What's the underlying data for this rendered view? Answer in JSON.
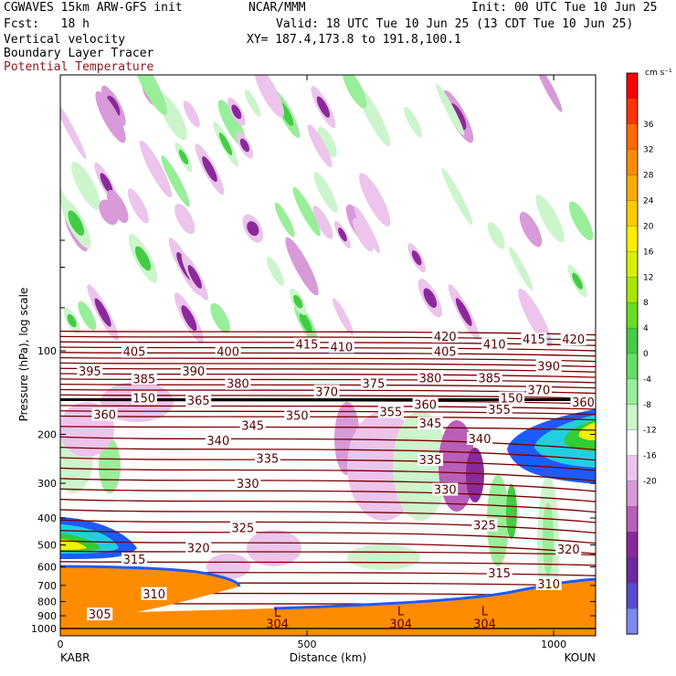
{
  "header": {
    "model": "CGWAVES 15km ARW-GFS init",
    "org": "NCAR/MMM",
    "init": "Init: 00 UTC Tue 10 Jun 25",
    "fcst": "Fcst:   18 h",
    "valid": "Valid: 18 UTC Tue 10 Jun 25 (13 CDT Tue 10 Jun 25)",
    "field1": "Vertical velocity",
    "field2": "Boundary Layer Tracer",
    "field3": "Potential Temperature",
    "xy": "XY= 187.4,173.8 to 191.8,100.1"
  },
  "colors": {
    "contour": "#7a0000",
    "terrain": "#ff8c00",
    "tracer_blue": "#1e5bff",
    "tracer_cyan": "#20d0e0",
    "tracer_green": "#33cc33",
    "tracer_yellow": "#f0f000"
  },
  "chart_data": {
    "type": "heatmap",
    "title": "Vertical velocity",
    "xlabel": "Distance (km)",
    "ylabel": "Pressure (hPa), log scale",
    "x_endpoints": [
      "KABR",
      "KOUN"
    ],
    "xlim": [
      0,
      1100
    ],
    "x_ticks": [
      0,
      500,
      1000
    ],
    "y_ticks": [
      100,
      200,
      300,
      400,
      500,
      600,
      700,
      800,
      900,
      1000
    ],
    "colorbar": {
      "units": "cm s⁻¹",
      "levels": [
        36,
        32,
        28,
        24,
        20,
        16,
        12,
        8,
        4,
        0,
        -4,
        -8,
        -12,
        -16,
        -20
      ],
      "colors": [
        "#ff0000",
        "#ff3300",
        "#ff6a00",
        "#ff8c00",
        "#ffaa00",
        "#ffcc00",
        "#ffee00",
        "#d8f000",
        "#a8e600",
        "#66dd22",
        "#44cc44",
        "#66dd66",
        "#99ee99",
        "#ccf5cc",
        "#ffffff",
        "#ecc4ec",
        "#d89ad8",
        "#b860b8",
        "#8a2a9a",
        "#6a2aa0",
        "#5a4ad0",
        "#7a88f0"
      ]
    },
    "theta_labels": [
      {
        "value": "420",
        "x": 780,
        "p": 90
      },
      {
        "value": "420",
        "x": 1040,
        "p": 92
      },
      {
        "value": "415",
        "x": 500,
        "p": 96
      },
      {
        "value": "415",
        "x": 960,
        "p": 92
      },
      {
        "value": "410",
        "x": 570,
        "p": 98
      },
      {
        "value": "410",
        "x": 880,
        "p": 96
      },
      {
        "value": "405",
        "x": 150,
        "p": 102
      },
      {
        "value": "405",
        "x": 780,
        "p": 102
      },
      {
        "value": "400",
        "x": 340,
        "p": 102
      },
      {
        "value": "395",
        "x": 60,
        "p": 120
      },
      {
        "value": "390",
        "x": 270,
        "p": 120
      },
      {
        "value": "390",
        "x": 990,
        "p": 115
      },
      {
        "value": "385",
        "x": 170,
        "p": 128
      },
      {
        "value": "385",
        "x": 870,
        "p": 127
      },
      {
        "value": "380",
        "x": 360,
        "p": 133
      },
      {
        "value": "380",
        "x": 750,
        "p": 127
      },
      {
        "value": "375",
        "x": 635,
        "p": 133
      },
      {
        "value": "370",
        "x": 540,
        "p": 142
      },
      {
        "value": "370",
        "x": 970,
        "p": 140
      },
      {
        "value": "365",
        "x": 280,
        "p": 153
      },
      {
        "value": "360",
        "x": 90,
        "p": 172
      },
      {
        "value": "360",
        "x": 740,
        "p": 158
      },
      {
        "value": "360",
        "x": 1060,
        "p": 155
      },
      {
        "value": "355",
        "x": 670,
        "p": 168
      },
      {
        "value": "355",
        "x": 890,
        "p": 165
      },
      {
        "value": "350",
        "x": 480,
        "p": 173
      },
      {
        "value": "345",
        "x": 390,
        "p": 188
      },
      {
        "value": "345",
        "x": 750,
        "p": 185
      },
      {
        "value": "340",
        "x": 320,
        "p": 213
      },
      {
        "value": "340",
        "x": 850,
        "p": 210
      },
      {
        "value": "335",
        "x": 420,
        "p": 247
      },
      {
        "value": "335",
        "x": 750,
        "p": 250
      },
      {
        "value": "330",
        "x": 380,
        "p": 305
      },
      {
        "value": "330",
        "x": 780,
        "p": 320
      },
      {
        "value": "325",
        "x": 370,
        "p": 440
      },
      {
        "value": "325",
        "x": 860,
        "p": 430
      },
      {
        "value": "320",
        "x": 280,
        "p": 520
      },
      {
        "value": "320",
        "x": 1030,
        "p": 525
      },
      {
        "value": "315",
        "x": 150,
        "p": 570
      },
      {
        "value": "315",
        "x": 890,
        "p": 640
      },
      {
        "value": "310",
        "x": 190,
        "p": 760
      },
      {
        "value": "310",
        "x": 990,
        "p": 700
      },
      {
        "value": "305",
        "x": 80,
        "p": 900
      }
    ],
    "tropopause_labels": [
      {
        "value": "150",
        "x": 170,
        "p": 150
      },
      {
        "value": "150",
        "x": 915,
        "p": 150
      }
    ],
    "surface_labels": [
      {
        "value": "304",
        "x": 440,
        "p": 990
      },
      {
        "value": "304",
        "x": 690,
        "p": 990
      },
      {
        "value": "304",
        "x": 860,
        "p": 990
      }
    ],
    "low_markers": [
      {
        "value": "L",
        "x": 440,
        "p": 880
      },
      {
        "value": "L",
        "x": 690,
        "p": 870
      },
      {
        "value": "L",
        "x": 860,
        "p": 870
      }
    ]
  }
}
